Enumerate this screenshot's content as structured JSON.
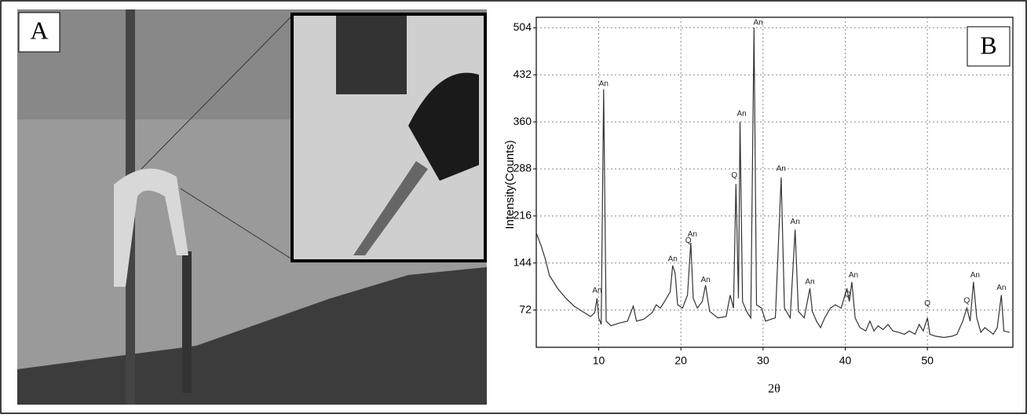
{
  "panel_a": {
    "label": "A"
  },
  "chart_data": {
    "type": "line",
    "panel_label": "B",
    "xlabel": "2θ",
    "ylabel": "Intensity(Counts)",
    "xlim": [
      2.4,
      60.4
    ],
    "ylim": [
      15,
      520
    ],
    "xticks": [
      10,
      20,
      30,
      40,
      50
    ],
    "yticks": [
      72,
      144,
      216,
      288,
      360,
      432,
      504
    ],
    "grid": true,
    "series": [
      {
        "color": "#333333",
        "x": [
          2.4,
          3,
          3.5,
          4,
          5,
          6,
          7,
          8,
          9,
          9.5,
          9.8,
          10,
          10.3,
          10.6,
          10.9,
          11.5,
          12.5,
          13.5,
          14.2,
          14.6,
          15.5,
          16.5,
          17,
          17.5,
          18,
          18.7,
          19,
          19.3,
          19.6,
          20.2,
          20.8,
          21.2,
          21.5,
          22,
          22.6,
          23,
          23.5,
          24.5,
          25.5,
          26,
          26.4,
          26.7,
          27,
          27.2,
          27.5,
          28,
          28.5,
          28.9,
          29.2,
          29.8,
          30.3,
          31,
          31.5,
          32.2,
          32.6,
          33.3,
          33.9,
          34.3,
          35,
          35.7,
          36,
          36.5,
          37,
          37.5,
          38.2,
          38.8,
          39.5,
          40.2,
          40.5,
          40.8,
          41.2,
          41.8,
          42.5,
          43,
          43.5,
          44,
          44.6,
          45.2,
          45.8,
          46.5,
          47.2,
          47.8,
          48.5,
          49,
          49.5,
          50,
          50.3,
          51,
          52,
          53,
          53.6,
          54.3,
          54.8,
          55.2,
          55.6,
          56,
          56.5,
          57,
          57.5,
          58,
          58.5,
          59,
          59.3,
          60
        ],
        "values": [
          190,
          170,
          150,
          125,
          105,
          90,
          78,
          70,
          62,
          68,
          90,
          60,
          50,
          410,
          55,
          48,
          52,
          55,
          78,
          55,
          58,
          68,
          80,
          75,
          85,
          100,
          140,
          128,
          80,
          75,
          95,
          175,
          90,
          75,
          85,
          110,
          70,
          60,
          62,
          95,
          75,
          265,
          90,
          360,
          85,
          70,
          60,
          504,
          80,
          75,
          55,
          58,
          60,
          275,
          75,
          60,
          195,
          70,
          60,
          105,
          70,
          55,
          45,
          60,
          75,
          80,
          75,
          105,
          85,
          115,
          60,
          45,
          40,
          55,
          40,
          48,
          42,
          50,
          40,
          38,
          35,
          40,
          35,
          50,
          40,
          60,
          35,
          32,
          30,
          32,
          35,
          55,
          75,
          55,
          115,
          60,
          38,
          45,
          40,
          35,
          45,
          95,
          40,
          38
        ]
      }
    ],
    "annotations": [
      {
        "text": "An",
        "x": 10.6,
        "y": 418
      },
      {
        "text": "An",
        "x": 9.8,
        "y": 102
      },
      {
        "text": "An",
        "x": 19,
        "y": 150
      },
      {
        "text": "Q",
        "x": 20.9,
        "y": 178
      },
      {
        "text": "An",
        "x": 21.4,
        "y": 188
      },
      {
        "text": "An",
        "x": 23,
        "y": 118
      },
      {
        "text": "Q",
        "x": 26.5,
        "y": 278
      },
      {
        "text": "An",
        "x": 27.4,
        "y": 372
      },
      {
        "text": "An",
        "x": 29.4,
        "y": 512
      },
      {
        "text": "An",
        "x": 32.2,
        "y": 288
      },
      {
        "text": "An",
        "x": 33.9,
        "y": 207
      },
      {
        "text": "An",
        "x": 35.7,
        "y": 115
      },
      {
        "text": "Q",
        "x": 40.3,
        "y": 96
      },
      {
        "text": "An",
        "x": 41,
        "y": 125
      },
      {
        "text": "Q",
        "x": 50,
        "y": 82
      },
      {
        "text": "Q",
        "x": 54.8,
        "y": 86
      },
      {
        "text": "An",
        "x": 55.8,
        "y": 125
      },
      {
        "text": "An",
        "x": 59,
        "y": 106
      }
    ]
  }
}
